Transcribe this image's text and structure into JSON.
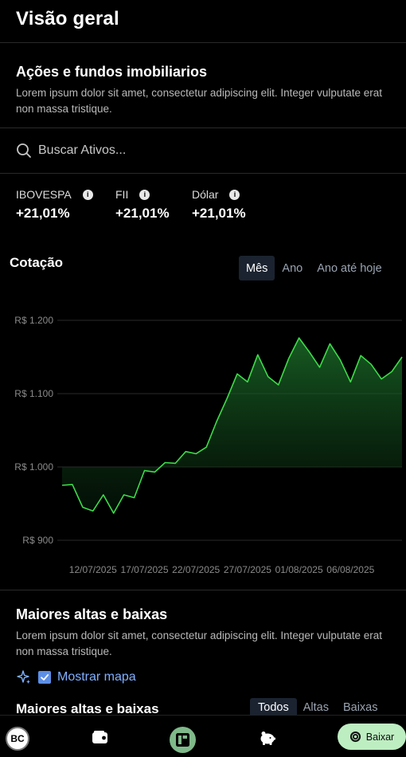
{
  "header": {
    "title": "Visão geral"
  },
  "intro": {
    "title": "Ações e fundos imobiliarios",
    "description": "Lorem ipsum dolor sit amet, consectetur adipiscing elit. Integer vulputate erat non massa tristique."
  },
  "search": {
    "placeholder": "Buscar Ativos..."
  },
  "indices": [
    {
      "name": "IBOVESPA",
      "value": "+21,01%"
    },
    {
      "name": "FII",
      "value": "+21,01%"
    },
    {
      "name": "Dólar",
      "value": "+21,01%"
    }
  ],
  "chart_section": {
    "title": "Cotação",
    "tabs": [
      {
        "label": "Mês",
        "active": true
      },
      {
        "label": "Ano",
        "active": false
      },
      {
        "label": "Ano até hoje",
        "active": false
      }
    ]
  },
  "chart_data": {
    "type": "area",
    "x": [
      "2025-07-09",
      "2025-07-10",
      "2025-07-11",
      "2025-07-12",
      "2025-07-13",
      "2025-07-14",
      "2025-07-15",
      "2025-07-16",
      "2025-07-17",
      "2025-07-18",
      "2025-07-19",
      "2025-07-20",
      "2025-07-21",
      "2025-07-22",
      "2025-07-23",
      "2025-07-24",
      "2025-07-25",
      "2025-07-26",
      "2025-07-27",
      "2025-07-28",
      "2025-07-29",
      "2025-07-30",
      "2025-07-31",
      "2025-08-01",
      "2025-08-02",
      "2025-08-03",
      "2025-08-04",
      "2025-08-05",
      "2025-08-06",
      "2025-08-07",
      "2025-08-08",
      "2025-08-09",
      "2025-08-10",
      "2025-08-11"
    ],
    "series": [
      {
        "values": [
          975,
          976,
          945,
          940,
          962,
          937,
          962,
          958,
          995,
          993,
          1006,
          1005,
          1021,
          1018,
          1027,
          1062,
          1093,
          1127,
          1116,
          1153,
          1123,
          1112,
          1148,
          1176,
          1157,
          1136,
          1168,
          1146,
          1116,
          1152,
          1140,
          1120,
          1130,
          1150
        ]
      }
    ],
    "x_tick_labels": [
      "12/07/2025",
      "17/07/2025",
      "22/07/2025",
      "27/07/2025",
      "01/08/2025",
      "06/08/2025"
    ],
    "y_tick_labels": [
      "R$ 1.200",
      "R$ 1.100",
      "R$ 1.000",
      "R$ 900"
    ],
    "y_ticks": [
      1200,
      1100,
      1000,
      900
    ],
    "ylim": [
      900,
      1200
    ],
    "grid": true,
    "line_color": "#3ddc4a",
    "fill_color": "#1f7a2e"
  },
  "movers": {
    "title": "Maiores altas e baixas",
    "description": "Lorem ipsum dolor sit amet, consectetur adipiscing elit. Integer vulputate erat non massa tristique.",
    "map_toggle_label": "Mostrar mapa",
    "map_toggle_checked": true
  },
  "movers_table": {
    "title": "Maiores altas e baixas",
    "tabs": [
      {
        "label": "Todos",
        "active": true
      },
      {
        "label": "Altas",
        "active": false
      },
      {
        "label": "Baixas",
        "active": false
      }
    ]
  },
  "bottom_nav": {
    "avatar_initials": "BC",
    "download_label": "Baixar",
    "icons": [
      "avatar",
      "wallet-icon",
      "home-icon",
      "piggy-bank-icon",
      "globe-icon"
    ]
  },
  "colors": {
    "accent": "#5d8fe6",
    "chart_line": "#3ddc4a",
    "download_bg": "#bdeec1"
  }
}
